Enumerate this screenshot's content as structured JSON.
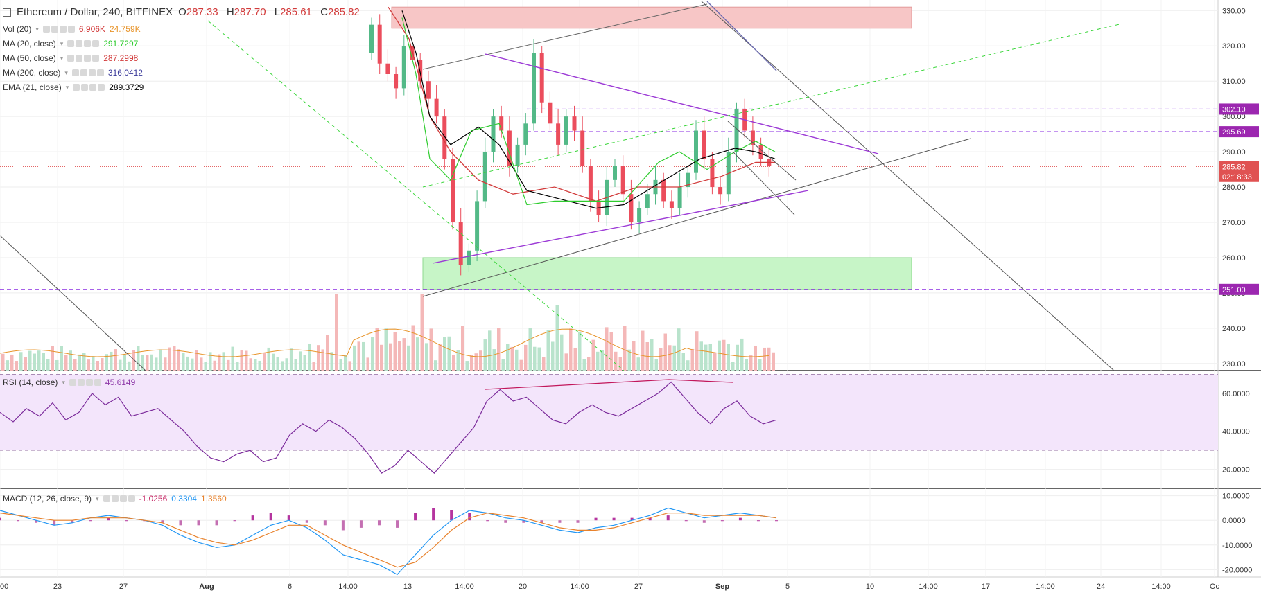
{
  "header": {
    "symbol": "Ethereum / Dollar, 240, BITFINEX",
    "o_label": "O",
    "o_value": "287.33",
    "h_label": "H",
    "h_value": "287.70",
    "l_label": "L",
    "l_value": "285.61",
    "c_label": "C",
    "c_value": "285.82"
  },
  "indicators": [
    {
      "label": "Vol (20)",
      "values": [
        "6.906K",
        "24.759K"
      ],
      "colors": [
        "#d23b3b",
        "#e8952c"
      ]
    },
    {
      "label": "MA (20, close)",
      "values": [
        "291.7297"
      ],
      "colors": [
        "#2ecc2e"
      ]
    },
    {
      "label": "MA (50, close)",
      "values": [
        "287.2998"
      ],
      "colors": [
        "#d23b3b"
      ]
    },
    {
      "label": "MA (200, close)",
      "values": [
        "316.0412"
      ],
      "colors": [
        "#3b3b9a"
      ]
    },
    {
      "label": "EMA (21, close)",
      "values": [
        "289.3729"
      ],
      "colors": [
        "#000000"
      ]
    }
  ],
  "rsi_panel": {
    "label": "RSI (14, close)",
    "value": "45.6149",
    "color": "#8e3aa8"
  },
  "macd_panel": {
    "label": "MACD (12, 26, close, 9)",
    "values": [
      "-1.0256",
      "0.3304",
      "1.3560"
    ],
    "colors": [
      "#c2185b",
      "#2196f3",
      "#e8822c"
    ]
  },
  "price_axis": {
    "ticks": [
      "330.00",
      "320.00",
      "310.00",
      "300.00",
      "290.00",
      "280.00",
      "270.00",
      "260.00",
      "250.00",
      "240.00",
      "230.00"
    ],
    "tick_values": [
      330,
      320,
      310,
      300,
      290,
      280,
      270,
      260,
      250,
      240,
      230
    ],
    "badges": [
      {
        "text": "302.10",
        "value": 302.1,
        "color": "#9c27b0"
      },
      {
        "text": "295.69",
        "value": 295.69,
        "color": "#9c27b0"
      },
      {
        "text": "285.82",
        "value": 285.82,
        "color": "#e05252"
      },
      {
        "text": "02:18:33",
        "value": 283.0,
        "color": "#e05252"
      },
      {
        "text": "251.00",
        "value": 251.0,
        "color": "#9c27b0"
      }
    ]
  },
  "rsi_axis": {
    "ticks": [
      "60.0000",
      "40.0000",
      "20.0000"
    ],
    "tick_values": [
      60,
      40,
      20
    ]
  },
  "macd_axis": {
    "ticks": [
      "10.0000",
      "0.0000",
      "-10.0000",
      "-20.0000"
    ],
    "tick_values": [
      10,
      0,
      -10,
      -20
    ]
  },
  "time_axis": {
    "labels": [
      "00",
      "23",
      "27",
      "Aug",
      "6",
      "14:00",
      "13",
      "14:00",
      "20",
      "14:00",
      "27",
      "Sep",
      "5",
      "10",
      "14:00",
      "17",
      "14:00",
      "24",
      "14:00",
      "Oc"
    ],
    "bold": [
      "Aug",
      "Sep"
    ]
  },
  "chart_data": {
    "type": "candlestick",
    "price_ylim": [
      228,
      333
    ],
    "horizontal_levels": [
      302.1,
      295.69,
      251.0
    ],
    "current_price": 285.82,
    "zones": [
      {
        "name": "resistance",
        "from": 325,
        "to": 331,
        "color": "#f7c6c6"
      },
      {
        "name": "support",
        "from": 251,
        "to": 260,
        "color": "#c7f5c7"
      }
    ],
    "ohlc_sample": [
      {
        "o": 287.33,
        "h": 287.7,
        "l": 285.61,
        "c": 285.82
      }
    ],
    "price_path": [
      318,
      326,
      315,
      312,
      308,
      320,
      316,
      310,
      305,
      300,
      288,
      270,
      258,
      262,
      276,
      290,
      300,
      296,
      286,
      292,
      298,
      318,
      304,
      298,
      292,
      300,
      296,
      286,
      276,
      272,
      282,
      286,
      278,
      270,
      274,
      278,
      282,
      276,
      274,
      280,
      284,
      296,
      288,
      280,
      278,
      290,
      302,
      296,
      292,
      288,
      286
    ],
    "rsi_levels": [
      70,
      30
    ],
    "rsi_ylim": [
      10,
      72
    ],
    "rsi_path": [
      50,
      45,
      52,
      48,
      55,
      46,
      50,
      60,
      54,
      58,
      48,
      50,
      52,
      46,
      40,
      32,
      26,
      24,
      28,
      30,
      24,
      26,
      38,
      44,
      40,
      46,
      42,
      36,
      28,
      18,
      22,
      30,
      24,
      18,
      26,
      34,
      42,
      56,
      62,
      56,
      58,
      52,
      46,
      44,
      50,
      54,
      50,
      48,
      52,
      56,
      60,
      66,
      58,
      50,
      44,
      52,
      56,
      48,
      44,
      46
    ],
    "macd_ylim": [
      -23,
      13
    ],
    "macd_line": [
      4,
      2,
      0,
      -2,
      -1,
      1,
      2,
      1,
      0,
      -2,
      -6,
      -9,
      -11,
      -10,
      -6,
      -2,
      0,
      -3,
      -8,
      -14,
      -16,
      -18,
      -22,
      -14,
      -6,
      0,
      4,
      3,
      1,
      0,
      -2,
      -4,
      -5,
      -3,
      -2,
      0,
      2,
      5,
      3,
      1,
      2,
      3,
      2,
      1
    ],
    "signal_line": [
      3,
      2,
      1,
      0,
      0,
      1,
      1,
      1,
      0,
      -1,
      -4,
      -7,
      -9,
      -10,
      -8,
      -5,
      -2,
      -2,
      -6,
      -10,
      -13,
      -16,
      -19,
      -17,
      -11,
      -4,
      1,
      3,
      2,
      1,
      -1,
      -3,
      -4,
      -4,
      -3,
      -1,
      1,
      3,
      3,
      2,
      2,
      2,
      2,
      1
    ]
  }
}
